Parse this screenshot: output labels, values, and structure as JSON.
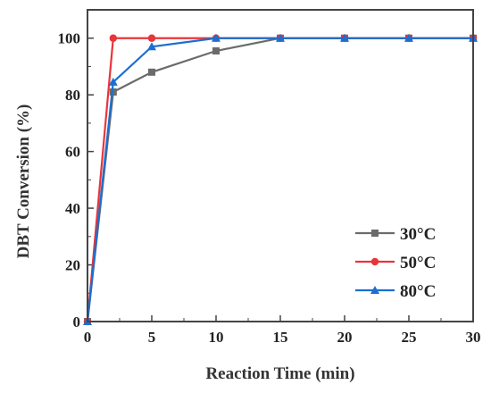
{
  "chart_data": {
    "type": "line",
    "title": "",
    "xlabel": "Reaction Time (min)",
    "ylabel": "DBT Conversion (%)",
    "xlim": [
      0,
      30
    ],
    "ylim": [
      0,
      110
    ],
    "xticks": [
      "0",
      "5",
      "10",
      "15",
      "20",
      "25",
      "30"
    ],
    "yticks": [
      "0",
      "20",
      "40",
      "60",
      "80",
      "100"
    ],
    "grid": false,
    "legend_position": "bottom-right",
    "series": [
      {
        "name": "30°C",
        "color": "#6b6b6b",
        "marker": "square",
        "x": [
          0,
          2,
          5,
          10,
          15,
          20,
          25,
          30
        ],
        "y": [
          0,
          81,
          88,
          95.5,
          100,
          100,
          100,
          100
        ]
      },
      {
        "name": "50°C",
        "color": "#e8353a",
        "marker": "circle",
        "x": [
          0,
          2,
          5,
          10,
          15,
          20,
          25,
          30
        ],
        "y": [
          0,
          100,
          100,
          100,
          100,
          100,
          100,
          100
        ]
      },
      {
        "name": "80°C",
        "color": "#1c6fd1",
        "marker": "triangle",
        "x": [
          0,
          2,
          5,
          10,
          15,
          20,
          25,
          30
        ],
        "y": [
          0,
          84.5,
          97,
          100,
          100,
          100,
          100,
          100
        ]
      }
    ]
  }
}
